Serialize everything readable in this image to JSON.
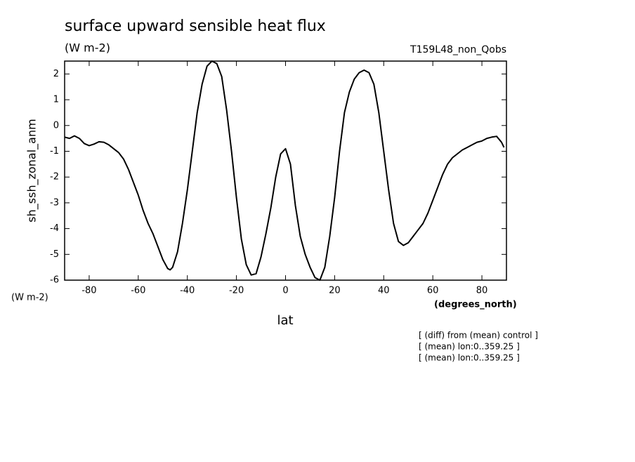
{
  "chart_data": {
    "type": "line",
    "title": "surface upward sensible heat flux",
    "subtitle": "(W m-2)",
    "run_label": "T159L48_non_Qobs",
    "y_label": "sh_ssh_zonal_anm",
    "y_unit": "(W m-2)",
    "x_label": "lat",
    "x_unit": "(degrees_north)",
    "annotations": [
      "[ (diff) from (mean) control ]",
      "[ (mean) lon:0..359.25 ]",
      "[ (mean) lon:0..359.25 ]"
    ],
    "color": "#000000",
    "x": [
      -90,
      -88,
      -86,
      -84,
      -82,
      -80,
      -78,
      -76,
      -74,
      -72,
      -70,
      -68,
      -66,
      -64,
      -62,
      -60,
      -58,
      -56,
      -54,
      -52,
      -50,
      -48,
      -47,
      -46,
      -44,
      -42,
      -40,
      -38,
      -36,
      -34,
      -32,
      -30,
      -28,
      -26,
      -24,
      -22,
      -20,
      -18,
      -16,
      -14,
      -12,
      -10,
      -8,
      -6,
      -4,
      -2,
      0,
      2,
      4,
      6,
      8,
      10,
      12,
      14,
      16,
      18,
      20,
      22,
      24,
      26,
      28,
      30,
      32,
      34,
      36,
      38,
      40,
      42,
      44,
      46,
      48,
      50,
      52,
      54,
      56,
      58,
      60,
      62,
      64,
      66,
      68,
      70,
      72,
      74,
      76,
      78,
      80,
      82,
      84,
      86,
      88,
      89
    ],
    "values": [
      -0.45,
      -0.5,
      -0.4,
      -0.5,
      -0.7,
      -0.78,
      -0.72,
      -0.63,
      -0.65,
      -0.75,
      -0.9,
      -1.05,
      -1.3,
      -1.7,
      -2.2,
      -2.7,
      -3.3,
      -3.8,
      -4.2,
      -4.7,
      -5.2,
      -5.55,
      -5.6,
      -5.5,
      -4.9,
      -3.8,
      -2.5,
      -1.0,
      0.5,
      1.6,
      2.3,
      2.5,
      2.4,
      1.9,
      0.6,
      -1.0,
      -2.8,
      -4.4,
      -5.4,
      -5.8,
      -5.75,
      -5.1,
      -4.2,
      -3.2,
      -2.0,
      -1.1,
      -0.9,
      -1.5,
      -3.1,
      -4.3,
      -5.0,
      -5.5,
      -5.9,
      -6.0,
      -5.5,
      -4.3,
      -2.8,
      -1.0,
      0.5,
      1.3,
      1.8,
      2.05,
      2.15,
      2.05,
      1.6,
      0.5,
      -1.0,
      -2.5,
      -3.8,
      -4.5,
      -4.65,
      -4.55,
      -4.3,
      -4.05,
      -3.8,
      -3.4,
      -2.9,
      -2.4,
      -1.9,
      -1.5,
      -1.25,
      -1.1,
      -0.95,
      -0.85,
      -0.75,
      -0.65,
      -0.6,
      -0.5,
      -0.45,
      -0.42,
      -0.65,
      -0.85
    ],
    "xlim": [
      -90,
      90
    ],
    "ylim": [
      -6,
      2.5
    ],
    "xticks": [
      -80,
      -60,
      -40,
      -20,
      0,
      20,
      40,
      60,
      80
    ],
    "yticks": [
      -6,
      -5,
      -4,
      -3,
      -2,
      -1,
      0,
      1,
      2
    ]
  }
}
